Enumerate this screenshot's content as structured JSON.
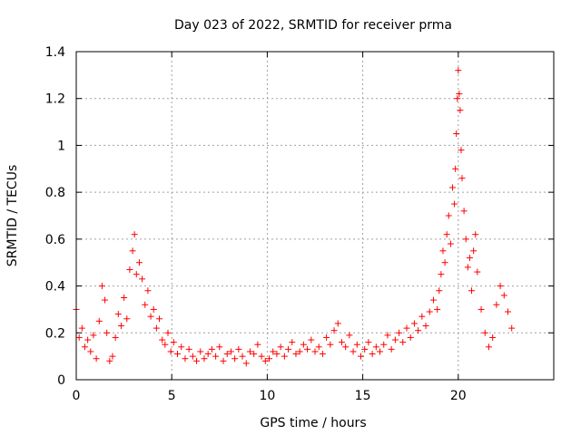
{
  "chart_data": {
    "type": "scatter",
    "title": "Day 023 of 2022, SRMTID for receiver prma",
    "xlabel": "GPS time / hours",
    "ylabel": "SRMTID / TECUs",
    "xlim": [
      0,
      25
    ],
    "ylim": [
      0,
      1.4
    ],
    "xticks": [
      0,
      5,
      10,
      15,
      20
    ],
    "xtick_labels": [
      "0",
      "5",
      "10",
      "15",
      "20"
    ],
    "yticks": [
      0,
      0.2,
      0.4,
      0.6,
      0.8,
      1.0,
      1.2,
      1.4
    ],
    "ytick_labels": [
      "0",
      "0.2",
      "0.4",
      "0.6",
      "0.8",
      "1",
      "1.2",
      "1.4"
    ],
    "grid": true,
    "marker": "+",
    "color": "#ff0000",
    "series": [
      {
        "name": "SRMTID",
        "x": [
          0.0,
          0.15,
          0.3,
          0.45,
          0.6,
          0.75,
          0.9,
          1.05,
          1.2,
          1.35,
          1.5,
          1.6,
          1.75,
          1.9,
          2.05,
          2.2,
          2.35,
          2.5,
          2.65,
          2.8,
          2.95,
          3.05,
          3.15,
          3.3,
          3.45,
          3.6,
          3.75,
          3.9,
          4.05,
          4.2,
          4.35,
          4.5,
          4.65,
          4.8,
          4.95,
          5.1,
          5.3,
          5.5,
          5.7,
          5.9,
          6.1,
          6.3,
          6.5,
          6.7,
          6.9,
          7.1,
          7.3,
          7.5,
          7.7,
          7.9,
          8.1,
          8.3,
          8.5,
          8.7,
          8.9,
          9.1,
          9.3,
          9.5,
          9.7,
          9.9,
          10.1,
          10.3,
          10.5,
          10.7,
          10.9,
          11.1,
          11.3,
          11.5,
          11.7,
          11.9,
          12.1,
          12.3,
          12.5,
          12.7,
          12.9,
          13.1,
          13.3,
          13.5,
          13.7,
          13.9,
          14.1,
          14.3,
          14.5,
          14.7,
          14.9,
          15.1,
          15.3,
          15.5,
          15.7,
          15.9,
          16.1,
          16.3,
          16.5,
          16.7,
          16.9,
          17.1,
          17.3,
          17.5,
          17.7,
          17.9,
          18.1,
          18.3,
          18.5,
          18.7,
          18.9,
          19.0,
          19.1,
          19.2,
          19.3,
          19.4,
          19.5,
          19.6,
          19.7,
          19.8,
          19.85,
          19.9,
          19.95,
          20.0,
          20.05,
          20.1,
          20.15,
          20.2,
          20.3,
          20.4,
          20.5,
          20.6,
          20.7,
          20.8,
          20.9,
          21.0,
          21.2,
          21.4,
          21.6,
          21.8,
          22.0,
          22.2,
          22.4,
          22.6,
          22.8
        ],
        "y": [
          0.3,
          0.18,
          0.22,
          0.14,
          0.17,
          0.12,
          0.19,
          0.09,
          0.25,
          0.4,
          0.34,
          0.2,
          0.08,
          0.1,
          0.18,
          0.28,
          0.23,
          0.35,
          0.26,
          0.47,
          0.55,
          0.62,
          0.45,
          0.5,
          0.43,
          0.32,
          0.38,
          0.27,
          0.3,
          0.22,
          0.26,
          0.17,
          0.15,
          0.2,
          0.12,
          0.16,
          0.11,
          0.14,
          0.09,
          0.13,
          0.1,
          0.08,
          0.12,
          0.09,
          0.11,
          0.13,
          0.1,
          0.14,
          0.08,
          0.11,
          0.12,
          0.09,
          0.13,
          0.1,
          0.07,
          0.12,
          0.11,
          0.15,
          0.1,
          0.08,
          0.09,
          0.12,
          0.11,
          0.14,
          0.1,
          0.13,
          0.16,
          0.11,
          0.12,
          0.15,
          0.13,
          0.17,
          0.12,
          0.14,
          0.11,
          0.18,
          0.15,
          0.21,
          0.24,
          0.16,
          0.14,
          0.19,
          0.12,
          0.15,
          0.1,
          0.13,
          0.16,
          0.11,
          0.14,
          0.12,
          0.15,
          0.19,
          0.13,
          0.17,
          0.2,
          0.16,
          0.22,
          0.18,
          0.24,
          0.21,
          0.27,
          0.23,
          0.29,
          0.34,
          0.3,
          0.38,
          0.45,
          0.55,
          0.5,
          0.62,
          0.7,
          0.58,
          0.82,
          0.75,
          0.9,
          1.05,
          1.2,
          1.32,
          1.22,
          1.15,
          0.98,
          0.86,
          0.72,
          0.6,
          0.48,
          0.52,
          0.38,
          0.55,
          0.62,
          0.46,
          0.3,
          0.2,
          0.14,
          0.18,
          0.32,
          0.4,
          0.36,
          0.29,
          0.22
        ]
      }
    ]
  }
}
